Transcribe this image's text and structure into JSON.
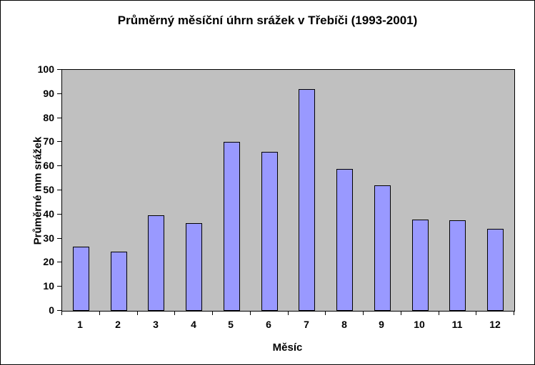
{
  "chart_data": {
    "type": "bar",
    "title": "Průměrný měsíční úhrn srážek v Třebíči (1993-2001)",
    "xlabel": "Měsíc",
    "ylabel": "Průměrné mm srážek",
    "categories": [
      "1",
      "2",
      "3",
      "4",
      "5",
      "6",
      "7",
      "8",
      "9",
      "10",
      "11",
      "12"
    ],
    "values": [
      26.5,
      24.5,
      39.5,
      36.5,
      70,
      66,
      92,
      59,
      52,
      38,
      37.5,
      34
    ],
    "ylim": [
      0,
      100
    ],
    "ytick_step": 10,
    "grid": false,
    "legend": "none",
    "colors": {
      "bar_fill": "#9999FF",
      "bar_border": "#000000",
      "plot_background": "#C0C0C0",
      "chart_background": "#FFFFFF",
      "axis": "#000000"
    }
  }
}
